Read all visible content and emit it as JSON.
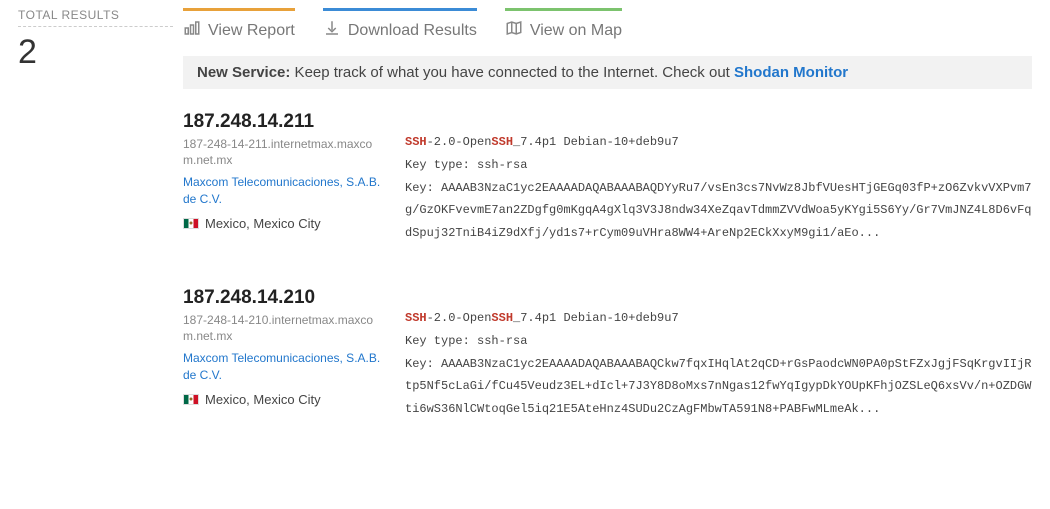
{
  "side": {
    "total_label": "TOTAL RESULTS",
    "total_value": "2"
  },
  "tabs": {
    "report": "View Report",
    "download": "Download Results",
    "map": "View on Map",
    "colors": {
      "report": "#e8a13a",
      "download": "#3b8bd6",
      "map": "#7cc36e"
    }
  },
  "banner": {
    "lead": "New Service:",
    "text": " Keep track of what you have connected to the Internet. Check out ",
    "link_text": "Shodan Monitor"
  },
  "results": [
    {
      "ip": "187.248.14.211",
      "hostname": "187-248-14-211.internetmax.maxcom.net.mx",
      "org": "Maxcom Telecomunicaciones, S.A.B. de C.V.",
      "country": "Mexico",
      "city": "Mexico City",
      "ssh": {
        "proto_pre": "SSH",
        "proto_mid": "-2.0-Open",
        "proto_post": "SSH",
        "proto_tail": "_7.4p1 Debian-10+deb9u7",
        "key_type_label": "Key type: ",
        "key_type": "ssh-rsa",
        "key_label": "Key: ",
        "key_value": "AAAAB3NzaC1yc2EAAAADAQABAAABAQDYyRu7/vsEn3cs7NvWz8JbfVUesHTjGEGq03fP+zO6ZvkvVXPvm7g/GzOKFvevmE7an2ZDgfg0mKgqA4gXlq3V3J8ndw34XeZqavTdmmZVVdWoa5yKYgi5S6Yy/Gr7VmJNZ4L8D6vFqdSpuj32TniB4iZ9dXfj/yd1s7+rCym09uVHra8WW4+AreNp2ECkXxyM9gi1/aEo..."
      }
    },
    {
      "ip": "187.248.14.210",
      "hostname": "187-248-14-210.internetmax.maxcom.net.mx",
      "org": "Maxcom Telecomunicaciones, S.A.B. de C.V.",
      "country": "Mexico",
      "city": "Mexico City",
      "ssh": {
        "proto_pre": "SSH",
        "proto_mid": "-2.0-Open",
        "proto_post": "SSH",
        "proto_tail": "_7.4p1 Debian-10+deb9u7",
        "key_type_label": "Key type: ",
        "key_type": "ssh-rsa",
        "key_label": "Key: ",
        "key_value": "AAAAB3NzaC1yc2EAAAADAQABAAABAQCkw7fqxIHqlAt2qCD+rGsPaodcWN0PA0pStFZxJgjFSqKrgvIIjRtp5Nf5cLaGi/fCu45Veudz3EL+dIcl+7J3Y8D8oMxs7nNgas12fwYqIgypDkYOUpKFhjOZSLeQ6xsVv/n+OZDGWti6wS36NlCWtoqGel5iq21E5AteHnz4SUDu2CzAgFMbwTA591N8+PABFwMLmeAk..."
      }
    }
  ]
}
